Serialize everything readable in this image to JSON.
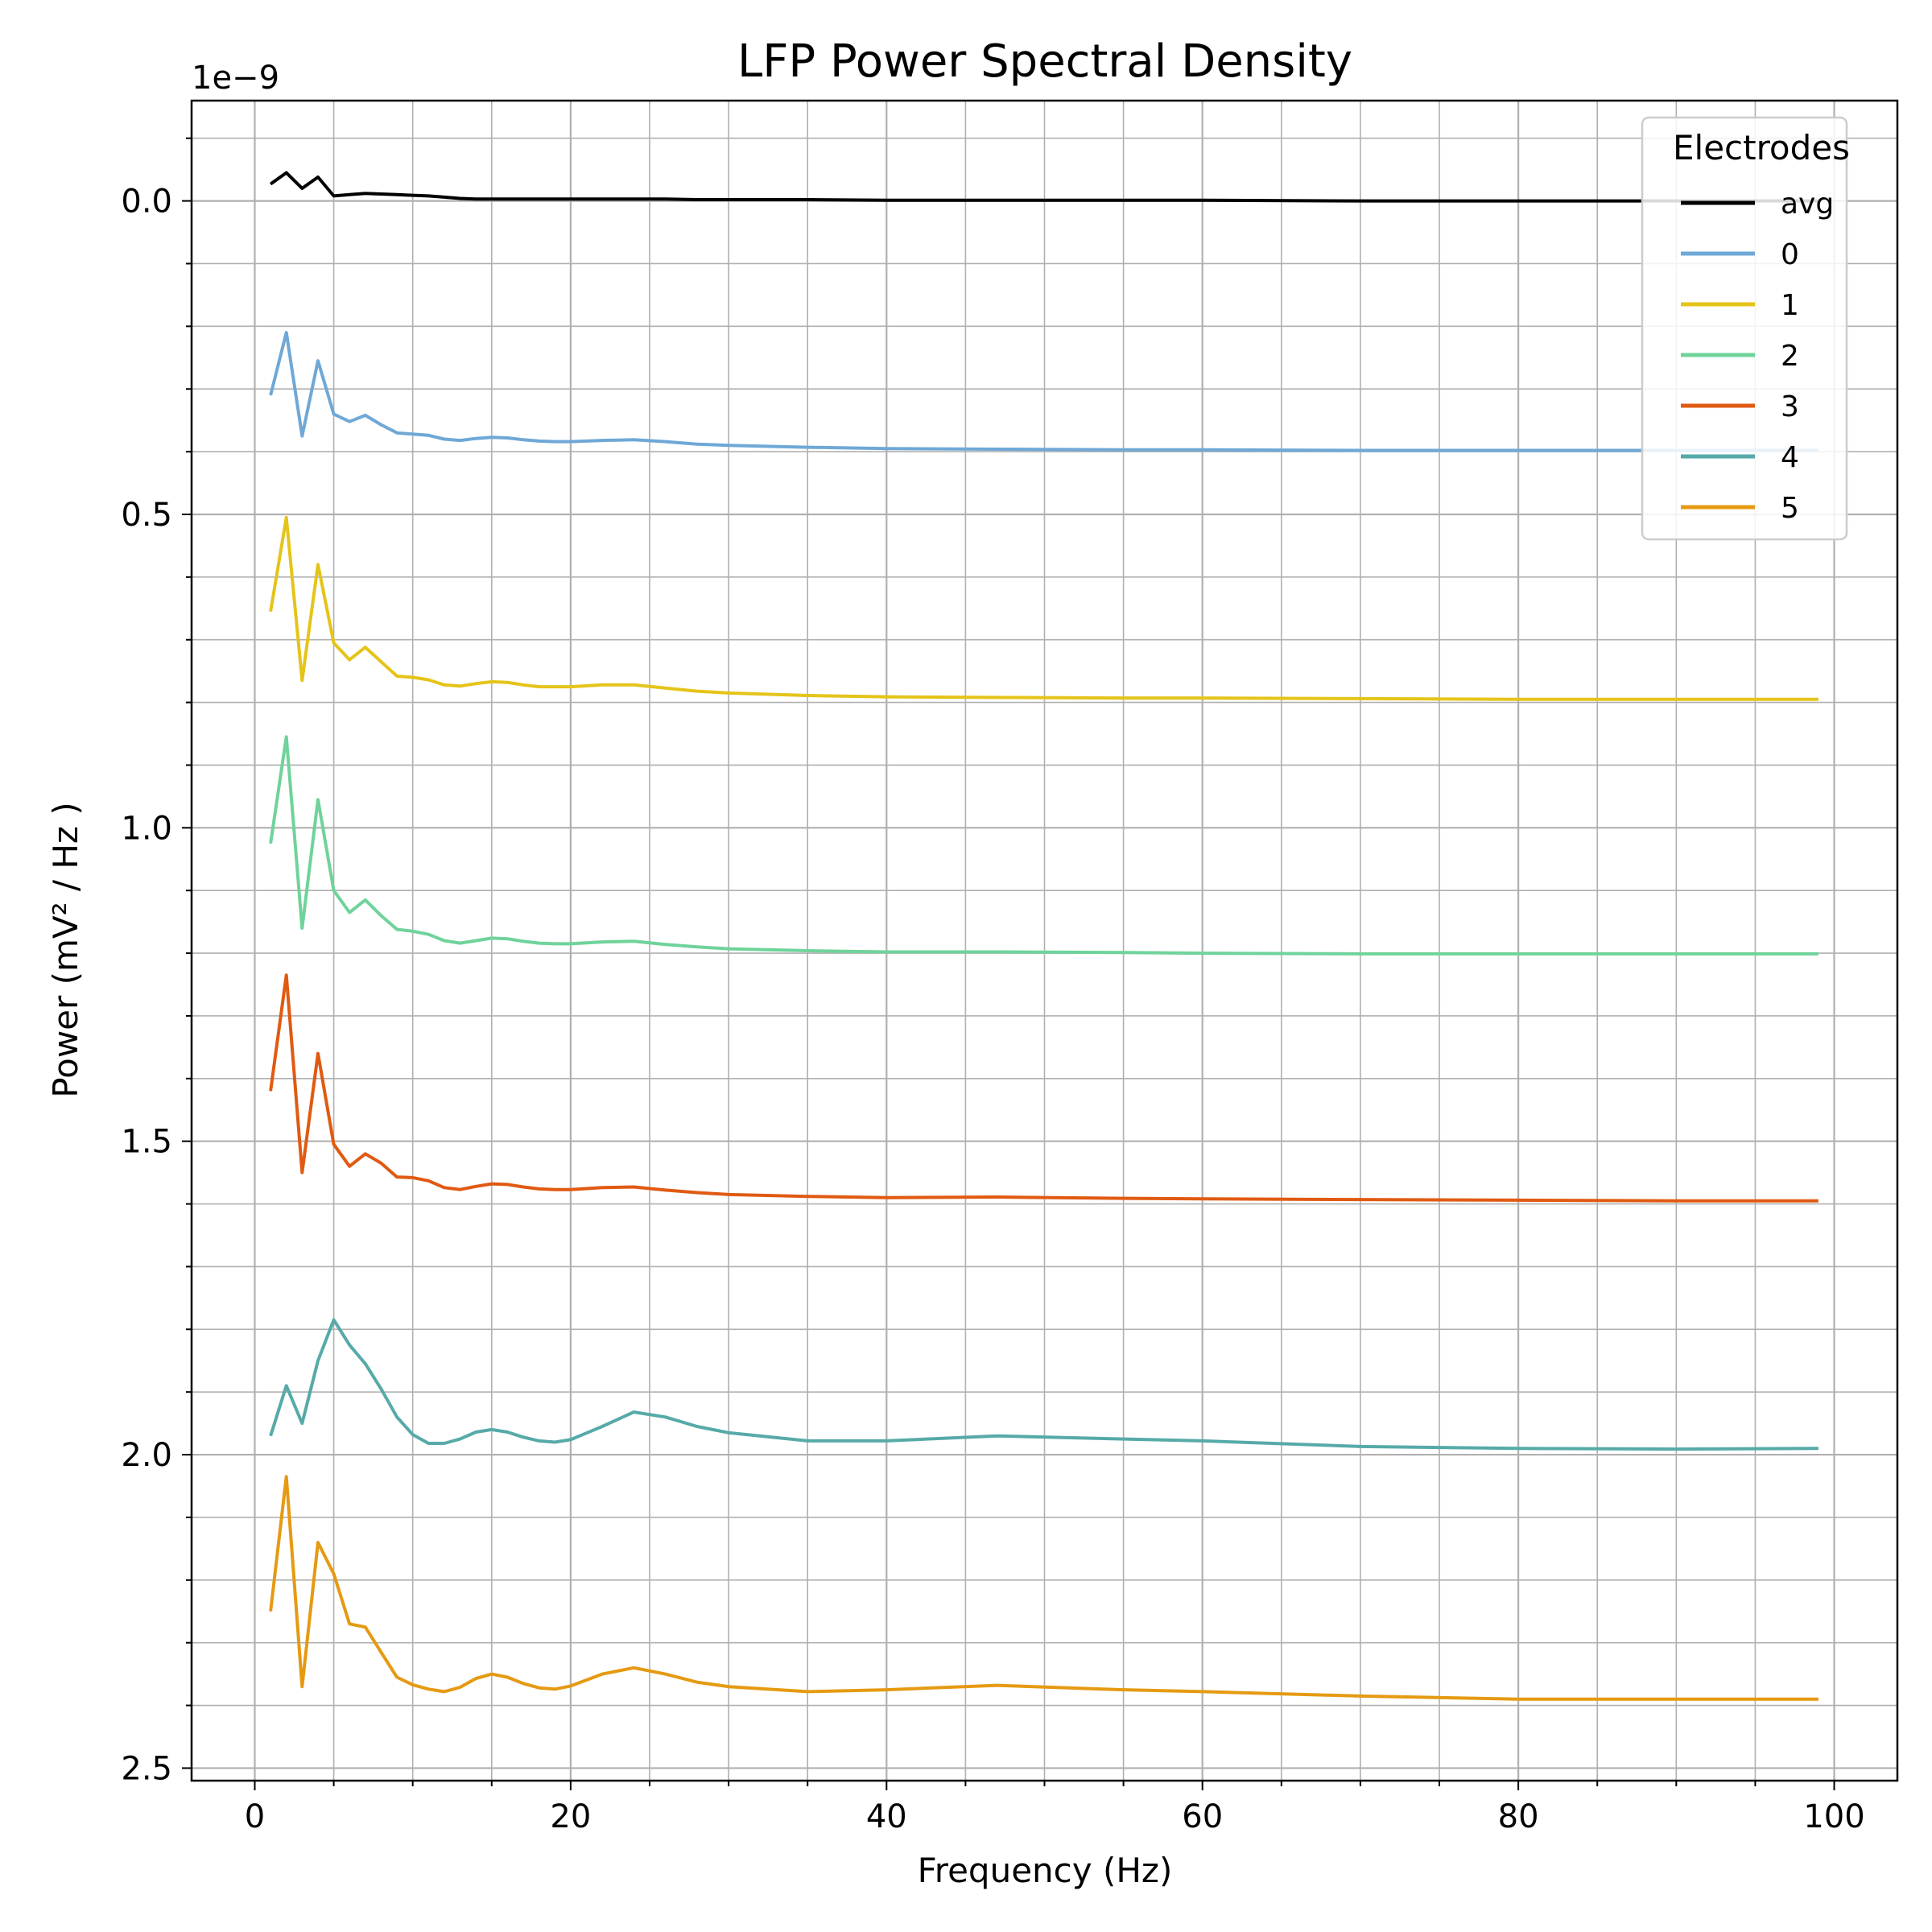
{
  "chart_data": {
    "type": "line",
    "title": "LFP Power Spectral Density",
    "xlabel": "Frequency (Hz)",
    "ylabel": "Power (mV² / Hz )",
    "y_offset_text": "1e−9",
    "xlim": [
      -4,
      104
    ],
    "ylim": [
      2.52e-09,
      -1.6e-10
    ],
    "y_inverted": true,
    "x_ticks": [
      0,
      20,
      40,
      60,
      80,
      100
    ],
    "x_tick_labels": [
      "0",
      "20",
      "40",
      "60",
      "80",
      "100"
    ],
    "y_ticks": [
      0,
      5e-10,
      1e-09,
      1.5e-09,
      2e-09,
      2.5e-09
    ],
    "y_tick_labels": [
      "0.0",
      "0.5",
      "1.0",
      "1.5",
      "2.0",
      "2.5"
    ],
    "grid": true,
    "legend_title": "Electrodes",
    "legend_position": "top-right",
    "x": [
      1,
      2,
      3,
      4,
      5,
      6,
      7,
      8,
      9,
      10,
      11,
      12,
      13,
      14,
      15,
      16,
      17,
      18,
      19,
      20,
      22,
      24,
      26,
      28,
      30,
      35,
      40,
      47,
      55,
      60,
      70,
      80,
      90,
      99
    ],
    "series": [
      {
        "name": "avg",
        "color": "#000000",
        "values": [
          -2.7e-11,
          -4.5e-11,
          -2e-11,
          -3.8e-11,
          -8e-12,
          -1e-11,
          -1.2e-11,
          -1.1e-11,
          -1e-11,
          -9e-12,
          -8e-12,
          -6e-12,
          -4e-12,
          -3e-12,
          -3e-12,
          -3e-12,
          -3e-12,
          -3e-12,
          -3e-12,
          -3e-12,
          -3e-12,
          -3e-12,
          -3e-12,
          -2e-12,
          -2e-12,
          -2e-12,
          -1e-12,
          -1e-12,
          -1e-12,
          -1e-12,
          0.0,
          0.0,
          0.0,
          0.0
        ]
      },
      {
        "name": "0",
        "color": "#6fa8d6",
        "values": [
          3.1e-10,
          2.1e-10,
          3.75e-10,
          2.55e-10,
          3.4e-10,
          3.52e-10,
          3.42e-10,
          3.57e-10,
          3.7e-10,
          3.72e-10,
          3.74e-10,
          3.8e-10,
          3.82e-10,
          3.79e-10,
          3.77e-10,
          3.78e-10,
          3.81e-10,
          3.83e-10,
          3.84e-10,
          3.84e-10,
          3.82e-10,
          3.81e-10,
          3.84e-10,
          3.88e-10,
          3.9e-10,
          3.93e-10,
          3.95e-10,
          3.96e-10,
          3.97e-10,
          3.97e-10,
          3.98e-10,
          3.98e-10,
          3.98e-10,
          3.98e-10
        ]
      },
      {
        "name": "1",
        "color": "#e5c41a",
        "values": [
          6.55e-10,
          5.05e-10,
          7.65e-10,
          5.8e-10,
          7.05e-10,
          7.32e-10,
          7.12e-10,
          7.35e-10,
          7.58e-10,
          7.6e-10,
          7.64e-10,
          7.72e-10,
          7.74e-10,
          7.7e-10,
          7.67e-10,
          7.68e-10,
          7.72e-10,
          7.75e-10,
          7.75e-10,
          7.75e-10,
          7.72e-10,
          7.72e-10,
          7.77e-10,
          7.82e-10,
          7.85e-10,
          7.89e-10,
          7.91e-10,
          7.92e-10,
          7.93e-10,
          7.93e-10,
          7.94e-10,
          7.95e-10,
          7.95e-10,
          7.95e-10
        ]
      },
      {
        "name": "2",
        "color": "#6fd39a",
        "values": [
          1.025e-09,
          8.55e-10,
          1.16e-09,
          9.55e-10,
          1.1e-09,
          1.135e-09,
          1.115e-09,
          1.14e-09,
          1.162e-09,
          1.165e-09,
          1.17e-09,
          1.18e-09,
          1.184e-09,
          1.18e-09,
          1.176e-09,
          1.177e-09,
          1.181e-09,
          1.184e-09,
          1.185e-09,
          1.185e-09,
          1.182e-09,
          1.181e-09,
          1.186e-09,
          1.19e-09,
          1.193e-09,
          1.196e-09,
          1.198e-09,
          1.198e-09,
          1.199e-09,
          1.2e-09,
          1.201e-09,
          1.201e-09,
          1.201e-09,
          1.201e-09
        ]
      },
      {
        "name": "3",
        "color": "#e05a12",
        "values": [
          1.42e-09,
          1.235e-09,
          1.55e-09,
          1.36e-09,
          1.505e-09,
          1.54e-09,
          1.52e-09,
          1.535e-09,
          1.557e-09,
          1.558e-09,
          1.563e-09,
          1.574e-09,
          1.577e-09,
          1.572e-09,
          1.568e-09,
          1.569e-09,
          1.573e-09,
          1.576e-09,
          1.577e-09,
          1.577e-09,
          1.574e-09,
          1.573e-09,
          1.578e-09,
          1.582e-09,
          1.585e-09,
          1.588e-09,
          1.59e-09,
          1.589e-09,
          1.591e-09,
          1.592e-09,
          1.593e-09,
          1.594e-09,
          1.595e-09,
          1.595e-09
        ]
      },
      {
        "name": "4",
        "color": "#56aaa8",
        "values": [
          1.97e-09,
          1.89e-09,
          1.95e-09,
          1.85e-09,
          1.785e-09,
          1.825e-09,
          1.855e-09,
          1.895e-09,
          1.94e-09,
          1.968e-09,
          1.982e-09,
          1.982e-09,
          1.975e-09,
          1.964e-09,
          1.96e-09,
          1.964e-09,
          1.972e-09,
          1.978e-09,
          1.98e-09,
          1.976e-09,
          1.955e-09,
          1.932e-09,
          1.94e-09,
          1.955e-09,
          1.965e-09,
          1.978e-09,
          1.978e-09,
          1.97e-09,
          1.975e-09,
          1.978e-09,
          1.987e-09,
          1.99e-09,
          1.991e-09,
          1.99e-09
        ]
      },
      {
        "name": "5",
        "color": "#e59a12",
        "values": [
          2.25e-09,
          2.035e-09,
          2.37e-09,
          2.14e-09,
          2.19e-09,
          2.27e-09,
          2.275e-09,
          2.315e-09,
          2.355e-09,
          2.367e-09,
          2.374e-09,
          2.378e-09,
          2.371e-09,
          2.357e-09,
          2.35e-09,
          2.355e-09,
          2.365e-09,
          2.372e-09,
          2.374e-09,
          2.369e-09,
          2.35e-09,
          2.34e-09,
          2.35e-09,
          2.363e-09,
          2.37e-09,
          2.378e-09,
          2.375e-09,
          2.368e-09,
          2.375e-09,
          2.378e-09,
          2.385e-09,
          2.39e-09,
          2.39e-09,
          2.39e-09
        ]
      }
    ]
  }
}
